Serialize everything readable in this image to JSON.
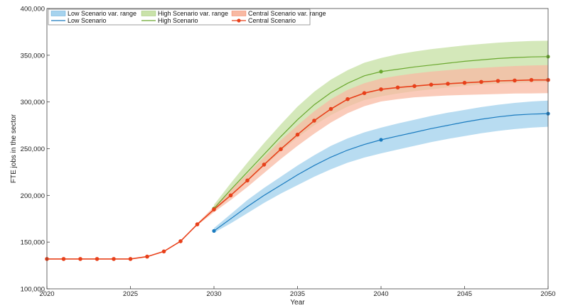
{
  "chart_data": {
    "type": "line",
    "title": "",
    "xlabel": "Year",
    "ylabel": "FTE jobs in the sector",
    "xlim": [
      2020,
      2050
    ],
    "ylim": [
      100000,
      400000
    ],
    "xticks": [
      2020,
      2025,
      2030,
      2035,
      2040,
      2045,
      2050
    ],
    "yticks": [
      100000,
      150000,
      200000,
      250000,
      300000,
      350000,
      400000
    ],
    "ytick_labels": [
      "100,000",
      "150,000",
      "200,000",
      "250,000",
      "300,000",
      "350,000",
      "400,000"
    ],
    "grid": false,
    "legend_position": "top-left",
    "legend_entries": [
      "Low Scenario var. range",
      "High Scenario var. range",
      "Central Scenario var. range",
      "Low Scenario",
      "High Scenario",
      "Central Scenario"
    ],
    "colors": {
      "low": "#1a7bbf",
      "low_band": "#a6d3ee",
      "high": "#6aa82e",
      "high_band": "#c9e2a9",
      "central": "#e8401a",
      "central_band": "#f8b9a3"
    },
    "series": [
      {
        "name": "Low Scenario",
        "key": "low",
        "x": [
          2030,
          2031,
          2032,
          2033,
          2034,
          2035,
          2036,
          2037,
          2038,
          2039,
          2040,
          2041,
          2042,
          2043,
          2044,
          2045,
          2046,
          2047,
          2048,
          2049,
          2050
        ],
        "y": [
          162000,
          175000,
          188000,
          200000,
          211000,
          222000,
          232000,
          241000,
          248500,
          254500,
          259500,
          263500,
          267500,
          271500,
          275000,
          278500,
          281500,
          284000,
          286000,
          287000,
          287500
        ],
        "band_low": [
          160000,
          170000,
          181000,
          192000,
          202000,
          211000,
          220000,
          228000,
          235000,
          240500,
          245000,
          249000,
          253000,
          257000,
          260500,
          263500,
          266500,
          269000,
          271000,
          272500,
          273500
        ],
        "band_high": [
          165000,
          180000,
          195000,
          208000,
          220000,
          232000,
          243000,
          253000,
          261000,
          267500,
          272500,
          277000,
          281000,
          285000,
          288500,
          291500,
          294500,
          297000,
          299000,
          300500,
          301500
        ],
        "markers": [
          2030,
          2040,
          2050
        ]
      },
      {
        "name": "High Scenario",
        "key": "high",
        "x": [
          2030,
          2031,
          2032,
          2033,
          2034,
          2035,
          2036,
          2037,
          2038,
          2039,
          2040,
          2041,
          2042,
          2043,
          2044,
          2045,
          2046,
          2047,
          2048,
          2049,
          2050
        ],
        "y": [
          186000,
          206000,
          225000,
          244000,
          263000,
          281000,
          297000,
          310000,
          320000,
          328000,
          332500,
          335000,
          337500,
          339500,
          341500,
          343500,
          345000,
          346500,
          347500,
          348200,
          348500
        ],
        "band_low": [
          183000,
          199000,
          215000,
          231000,
          247000,
          262000,
          275000,
          286000,
          295000,
          302000,
          306000,
          309000,
          311500,
          313500,
          315500,
          317000,
          318500,
          319500,
          320500,
          321000,
          321500
        ],
        "band_high": [
          190000,
          213000,
          235000,
          256000,
          276000,
          295000,
          311000,
          324000,
          334000,
          342000,
          347000,
          351000,
          354000,
          356500,
          358500,
          360500,
          362000,
          363500,
          364500,
          365200,
          365500
        ],
        "markers": [
          2030,
          2040,
          2050
        ]
      },
      {
        "name": "Central Scenario",
        "key": "central",
        "x": [
          2020,
          2021,
          2022,
          2023,
          2024,
          2025,
          2026,
          2027,
          2028,
          2029,
          2030,
          2031,
          2032,
          2033,
          2034,
          2035,
          2036,
          2037,
          2038,
          2039,
          2040,
          2041,
          2042,
          2043,
          2044,
          2045,
          2046,
          2047,
          2048,
          2049,
          2050
        ],
        "y": [
          132000,
          132000,
          132000,
          132000,
          132000,
          132000,
          134500,
          140000,
          151000,
          169000,
          185000,
          200000,
          216000,
          233000,
          249500,
          265000,
          280000,
          292500,
          303000,
          309500,
          313500,
          315500,
          317000,
          318500,
          319500,
          320500,
          321500,
          322500,
          323000,
          323500,
          323500
        ],
        "band_low": [
          132000,
          132000,
          132000,
          132000,
          132000,
          132000,
          134500,
          140000,
          151000,
          168000,
          182000,
          195000,
          209000,
          224000,
          239000,
          253000,
          266000,
          278000,
          288000,
          295500,
          300500,
          303000,
          305000,
          306000,
          307000,
          307500,
          308000,
          308500,
          309000,
          309200,
          309500
        ],
        "band_high": [
          132000,
          132000,
          132000,
          132000,
          132000,
          132000,
          134500,
          140000,
          151000,
          170000,
          188000,
          206000,
          223000,
          241000,
          259000,
          275000,
          290000,
          303000,
          313000,
          320000,
          325000,
          328000,
          330500,
          332500,
          334000,
          335500,
          336500,
          337500,
          338500,
          339000,
          339500
        ],
        "markers": "all"
      }
    ]
  }
}
